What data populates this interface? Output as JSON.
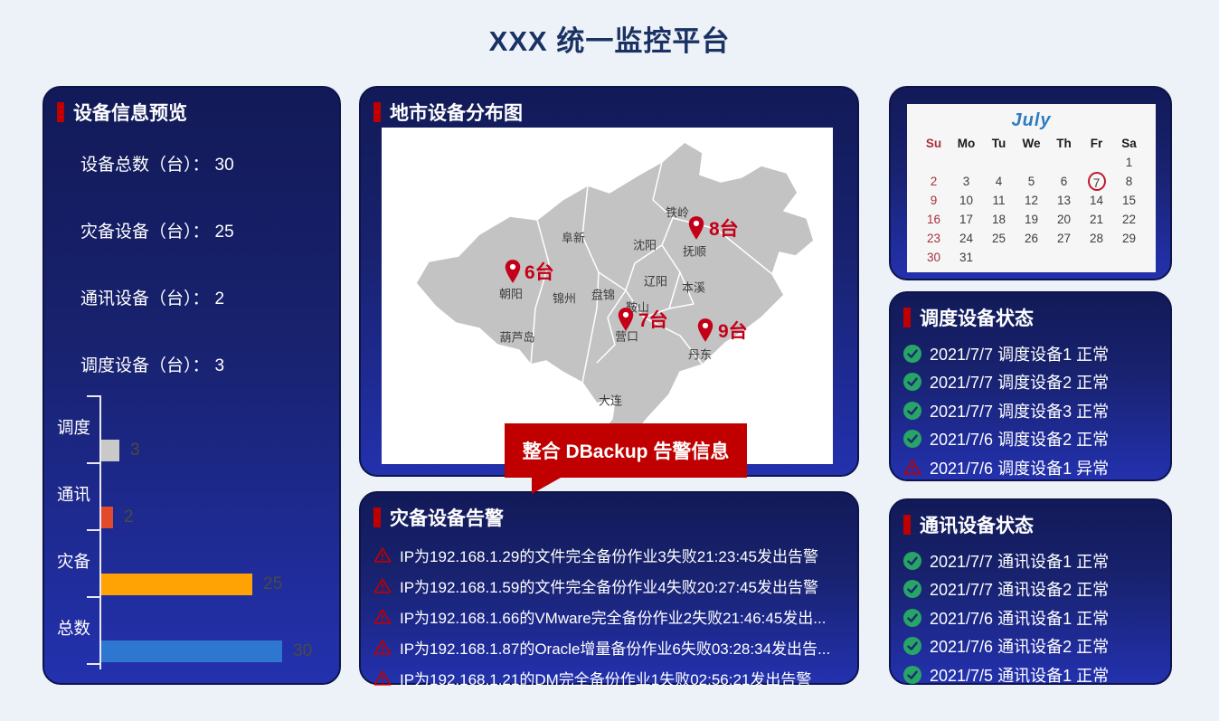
{
  "page": {
    "title": "XXX 统一监控平台"
  },
  "colors": {
    "accent_red": "#c00000",
    "pin_red": "#c40018",
    "check_green": "#27a567",
    "panel_blue_top": "#121a58",
    "panel_blue_bottom": "#2331ae"
  },
  "overview": {
    "title": "设备信息预览",
    "stats": [
      {
        "label": "设备总数（台）：",
        "value": "30"
      },
      {
        "label": "灾备设备（台）：",
        "value": "25"
      },
      {
        "label": "通讯设备（台）：",
        "value": "2"
      },
      {
        "label": "调度设备（台）：",
        "value": "3"
      }
    ]
  },
  "chart_data": {
    "type": "bar",
    "orientation": "horizontal",
    "categories": [
      "调度",
      "通讯",
      "灾备",
      "总数"
    ],
    "values": [
      3,
      2,
      25,
      30
    ],
    "colors": [
      "#c9c9c9",
      "#e3492b",
      "#ffa305",
      "#2e77d0"
    ],
    "xlim": [
      0,
      30
    ],
    "title": "",
    "xlabel": "",
    "ylabel": "",
    "grid": false,
    "legend": "none"
  },
  "map": {
    "title": "地市设备分布图",
    "cities": [
      "铁岭",
      "阜新",
      "沈阳",
      "抚顺",
      "朝阳",
      "锦州",
      "盘锦",
      "辽阳",
      "本溪",
      "鞍山",
      "葫芦岛",
      "营口",
      "丹东",
      "大连"
    ],
    "markers": [
      {
        "label": "6台",
        "city": "朝阳"
      },
      {
        "label": "8台",
        "city": "抚顺"
      },
      {
        "label": "7台",
        "city": "鞍山"
      },
      {
        "label": "9台",
        "city": "丹东"
      }
    ],
    "callout": "整合 DBackup 告警信息"
  },
  "alerts": {
    "title": "灾备设备告警",
    "items": [
      {
        "text": "IP为192.168.1.29的文件完全备份作业3失败21:23:45发出告警"
      },
      {
        "text": "IP为192.168.1.59的文件完全备份作业4失败20:27:45发出告警"
      },
      {
        "text": "IP为192.168.1.66的VMware完全备份作业2失败21:46:45发出..."
      },
      {
        "text": "IP为192.168.1.87的Oracle增量备份作业6失败03:28:34发出告..."
      },
      {
        "text": "IP为192.168.1.21的DM完全备份作业1失败02:56:21发出告警"
      }
    ]
  },
  "calendar": {
    "month": "July",
    "day_names": [
      "Su",
      "Mo",
      "Tu",
      "We",
      "Th",
      "Fr",
      "Sa"
    ],
    "weeks": [
      [
        "",
        "",
        "",
        "",
        "",
        "",
        "1"
      ],
      [
        "2",
        "3",
        "4",
        "5",
        "6",
        "7",
        "8"
      ],
      [
        "9",
        "10",
        "11",
        "12",
        "13",
        "14",
        "15"
      ],
      [
        "16",
        "17",
        "18",
        "19",
        "20",
        "21",
        "22"
      ],
      [
        "23",
        "24",
        "25",
        "26",
        "27",
        "28",
        "29"
      ],
      [
        "30",
        "31",
        "",
        "",
        "",
        "",
        ""
      ]
    ],
    "circled_date": "7"
  },
  "dispatch_status": {
    "title": "调度设备状态",
    "items": [
      {
        "text": "2021/7/7 调度设备1 正常",
        "status": "normal"
      },
      {
        "text": "2021/7/7 调度设备2 正常",
        "status": "normal"
      },
      {
        "text": "2021/7/7 调度设备3 正常",
        "status": "normal"
      },
      {
        "text": "2021/7/6 调度设备2 正常",
        "status": "normal"
      },
      {
        "text": "2021/7/6 调度设备1 异常",
        "status": "abnormal"
      }
    ]
  },
  "comm_status": {
    "title": "通讯设备状态",
    "items": [
      {
        "text": "2021/7/7 通讯设备1 正常",
        "status": "normal"
      },
      {
        "text": "2021/7/7 通讯设备2 正常",
        "status": "normal"
      },
      {
        "text": "2021/7/6 通讯设备1 正常",
        "status": "normal"
      },
      {
        "text": "2021/7/6 通讯设备2 正常",
        "status": "normal"
      },
      {
        "text": "2021/7/5 通讯设备1 正常",
        "status": "normal"
      }
    ]
  }
}
